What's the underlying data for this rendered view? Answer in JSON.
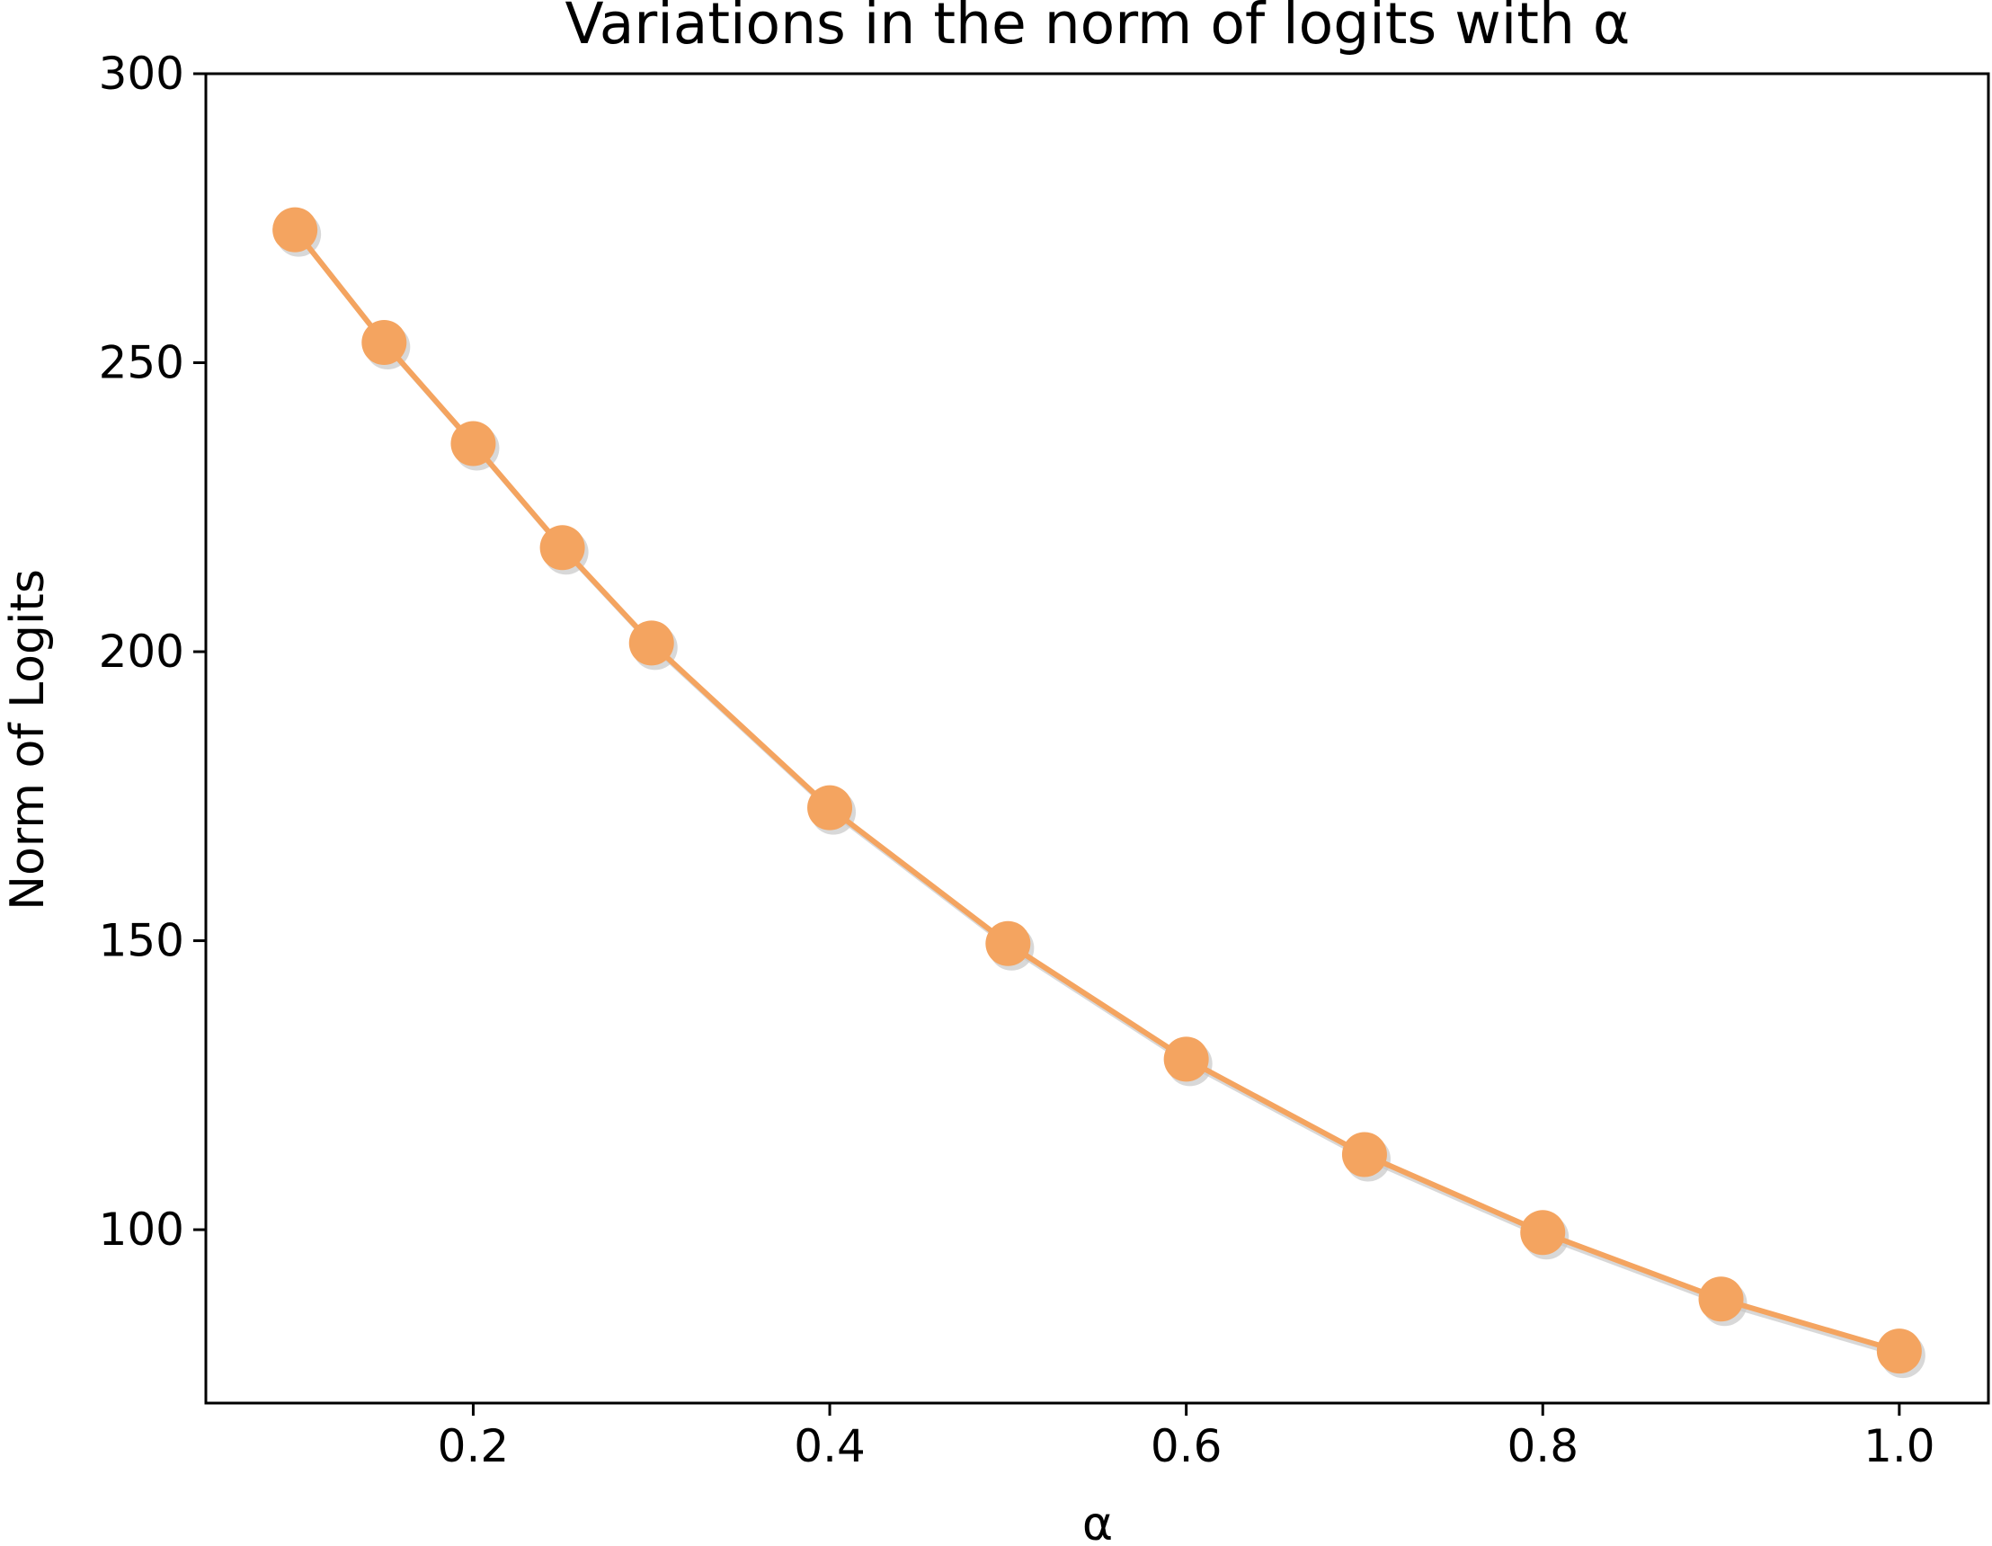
{
  "chart_data": {
    "type": "line",
    "title": "Variations in the norm of logits with α",
    "xlabel": "α",
    "ylabel": "Norm of Logits",
    "xlim": [
      0.05,
      1.05
    ],
    "ylim": [
      70,
      300
    ],
    "xticks": [
      0.2,
      0.4,
      0.6,
      0.8,
      1.0
    ],
    "xtick_labels": [
      "0.2",
      "0.4",
      "0.6",
      "0.8",
      "1.0"
    ],
    "yticks": [
      100,
      150,
      200,
      250,
      300
    ],
    "ytick_labels": [
      "100",
      "150",
      "200",
      "250",
      "300"
    ],
    "grid": false,
    "legend": "none",
    "colors": {
      "series": "#f4a460",
      "shadow": "#c8c8c8"
    },
    "series": [
      {
        "x": [
          0.1,
          0.15,
          0.2,
          0.25,
          0.3,
          0.4,
          0.5,
          0.6,
          0.7,
          0.8,
          0.9,
          1.0
        ],
        "values": [
          273,
          253.5,
          236,
          218,
          201.5,
          173,
          149.5,
          129.5,
          113,
          99.5,
          88,
          79
        ]
      }
    ]
  }
}
